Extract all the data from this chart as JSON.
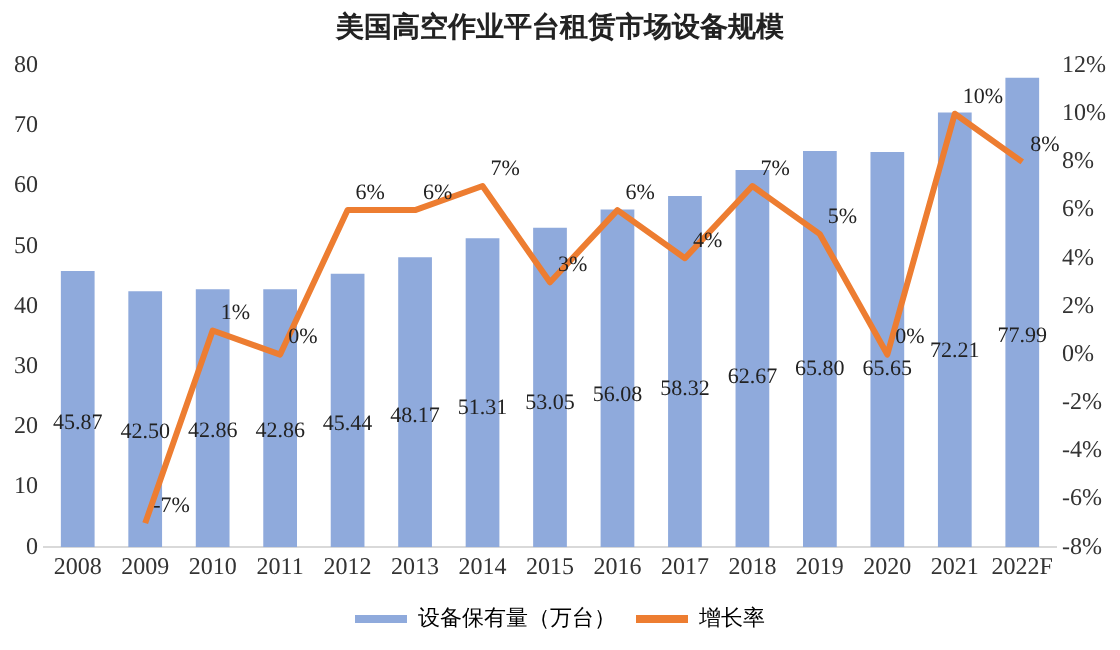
{
  "chart_data": {
    "type": "bar",
    "title": "美国高空作业平台租赁市场设备规模",
    "categories": [
      "2008",
      "2009",
      "2010",
      "2011",
      "2012",
      "2013",
      "2014",
      "2015",
      "2016",
      "2017",
      "2018",
      "2019",
      "2020",
      "2021",
      "2022F"
    ],
    "series": [
      {
        "name": "设备保有量（万台）",
        "color": "#8faadc",
        "values": [
          45.87,
          42.5,
          42.86,
          42.86,
          45.44,
          48.17,
          51.31,
          53.05,
          56.08,
          58.32,
          62.67,
          65.8,
          65.65,
          72.21,
          77.99
        ],
        "value_labels": [
          "45.87",
          "42.50",
          "42.86",
          "42.86",
          "45.44",
          "48.17",
          "51.31",
          "53.05",
          "56.08",
          "58.32",
          "62.67",
          "65.80",
          "65.65",
          "72.21",
          "77.99"
        ]
      },
      {
        "name": "增长率",
        "type": "line",
        "axis": "y2",
        "color": "#ed7d31",
        "values": [
          null,
          -7,
          1,
          0,
          6,
          6,
          7,
          3,
          6,
          4,
          7,
          5,
          0,
          10,
          8
        ],
        "value_labels": [
          null,
          "-7%",
          "1%",
          "0%",
          "6%",
          "6%",
          "7%",
          "3%",
          "6%",
          "4%",
          "7%",
          "5%",
          "0%",
          "10%",
          "8%"
        ]
      }
    ],
    "ylim": [
      0,
      80
    ],
    "yticks": [
      0,
      10,
      20,
      30,
      40,
      50,
      60,
      70,
      80
    ],
    "y2lim": [
      -8,
      12
    ],
    "y2ticks": [
      {
        "value": -8,
        "label": "-8%"
      },
      {
        "value": -6,
        "label": "-6%"
      },
      {
        "value": -4,
        "label": "-4%"
      },
      {
        "value": -2,
        "label": "-2%"
      },
      {
        "value": 0,
        "label": "0%"
      },
      {
        "value": 2,
        "label": "2%"
      },
      {
        "value": 4,
        "label": "4%"
      },
      {
        "value": 6,
        "label": "6%"
      },
      {
        "value": 8,
        "label": "8%"
      },
      {
        "value": 10,
        "label": "10%"
      },
      {
        "value": 12,
        "label": "12%"
      }
    ],
    "grid": false,
    "legend": "bottom",
    "marker": "none"
  }
}
